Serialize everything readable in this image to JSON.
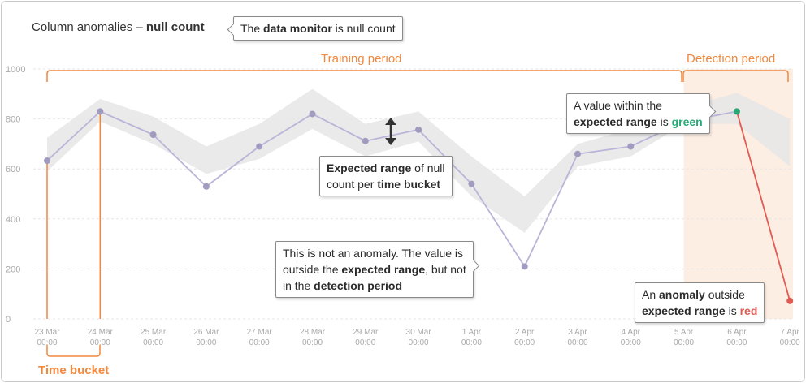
{
  "title": {
    "prefix": "Column anomalies – ",
    "bold": "null count"
  },
  "callouts": {
    "monitor": {
      "pre": "The ",
      "bold": "data monitor",
      "post": " is null count"
    },
    "range": {
      "bold1": "Expected range",
      "mid1": " of null",
      "mid2": "count per ",
      "bold2": "time bucket"
    },
    "not_anomaly": {
      "line1": "This is not an anomaly. The value is",
      "pre2": "outside the ",
      "bold2": "expected range",
      "post2": ", but not",
      "pre3": "in the ",
      "bold3": "detection period"
    },
    "within": {
      "line1": "A value within the",
      "bold2": "expected range",
      "mid2": " is ",
      "accent": "green"
    },
    "anomaly": {
      "pre1": "An ",
      "bold1": "anomaly",
      "post1": " outside",
      "bold2": "expected range",
      "mid2": " is ",
      "accent": "red"
    }
  },
  "periods": {
    "training": "Training period",
    "detection": "Detection period"
  },
  "time_bucket_label": "Time bucket",
  "colors": {
    "accent": "#f0883e",
    "line": "#b9b5d8",
    "point": "#a09bbf",
    "band": "#e6e6e6",
    "green": "#2aa876",
    "red": "#e25b52",
    "grid": "#e6e6e6",
    "detection_fill": "#fdeee3"
  },
  "chart_data": {
    "type": "line",
    "title": "Column anomalies – null count",
    "xlabel": "",
    "ylabel": "",
    "ylim": [
      0,
      1000
    ],
    "yticks": [
      "0",
      "200",
      "400",
      "600",
      "800",
      "1000"
    ],
    "categories": [
      "23 Mar 00:00",
      "24 Mar 00:00",
      "25 Mar 00:00",
      "26 Mar 00:00",
      "27 Mar 00:00",
      "28 Mar 00:00",
      "29 Mar 00:00",
      "30 Mar 00:00",
      "1 Apr 00:00",
      "2 Apr 00:00",
      "3 Apr 00:00",
      "4 Apr 00:00",
      "5 Apr 00:00",
      "6 Apr 00:00",
      "7 Apr 00:00"
    ],
    "x_tick_dates": [
      "23 Mar",
      "24 Mar",
      "25 Mar",
      "26 Mar",
      "27 Mar",
      "28 Mar",
      "29 Mar",
      "30 Mar",
      "1 Apr",
      "2 Apr",
      "3 Apr",
      "4 Apr",
      "5 Apr",
      "6 Apr",
      "7 Apr"
    ],
    "x_tick_times": [
      "00:00",
      "00:00",
      "00:00",
      "00:00",
      "00:00",
      "00:00",
      "00:00",
      "00:00",
      "00:00",
      "00:00",
      "00:00",
      "00:00",
      "00:00",
      "00:00",
      "00:00"
    ],
    "values": [
      633,
      830,
      737,
      530,
      690,
      820,
      712,
      757,
      540,
      210,
      660,
      690,
      790,
      830,
      72
    ],
    "expected_range_upper": [
      725,
      880,
      810,
      690,
      780,
      920,
      780,
      830,
      650,
      490,
      700,
      760,
      845,
      905,
      800
    ],
    "expected_range_lower": [
      590,
      790,
      700,
      580,
      640,
      760,
      650,
      710,
      490,
      345,
      610,
      650,
      780,
      780,
      610
    ],
    "point_status": [
      "normal",
      "normal",
      "normal",
      "normal",
      "normal",
      "normal",
      "normal",
      "normal",
      "normal",
      "normal",
      "normal",
      "normal",
      "normal",
      "within",
      "anomaly"
    ],
    "grid": true
  }
}
